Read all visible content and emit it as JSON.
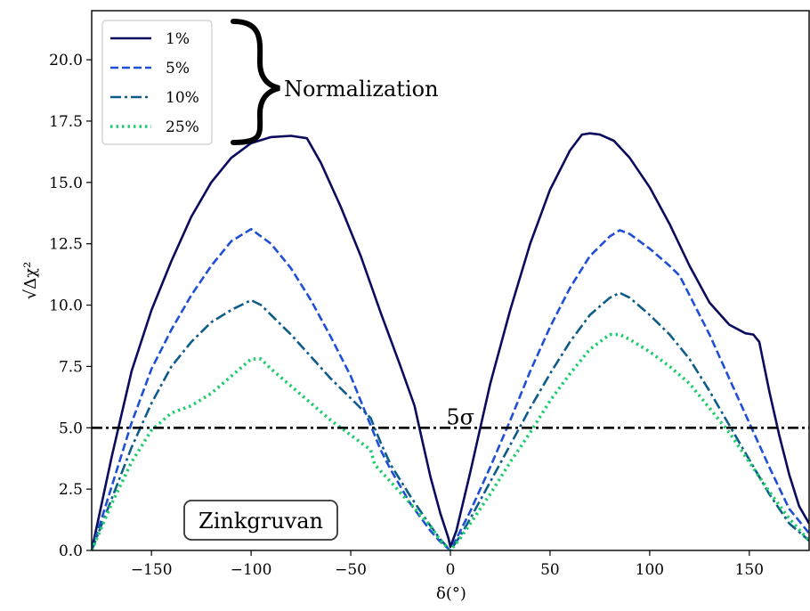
{
  "chart_data": {
    "type": "line",
    "title": "",
    "xlabel": "δ(°)",
    "ylabel": "√Δχ²",
    "xlim": [
      -180,
      180
    ],
    "ylim": [
      0,
      22
    ],
    "xticks": [
      -150,
      -100,
      -50,
      0,
      50,
      100,
      150
    ],
    "yticks": [
      0.0,
      2.5,
      5.0,
      7.5,
      10.0,
      12.5,
      15.0,
      17.5,
      20.0
    ],
    "xtick_labels": [
      "−150",
      "−100",
      "−50",
      "0",
      "50",
      "100",
      "150"
    ],
    "ytick_labels": [
      "0.0",
      "2.5",
      "5.0",
      "7.5",
      "10.0",
      "12.5",
      "15.0",
      "17.5",
      "20.0"
    ],
    "grid": false,
    "legend_position": "top-left",
    "series": [
      {
        "name": "1%",
        "color": "#0b0b5e",
        "dash": "solid",
        "x": [
          -180,
          -170,
          -160,
          -150,
          -140,
          -130,
          -120,
          -110,
          -100,
          -90,
          -80,
          -72,
          -65,
          -55,
          -45,
          -35,
          -25,
          -18,
          -15,
          -10,
          -5,
          -1,
          0,
          3,
          10,
          20,
          30,
          40,
          50,
          60,
          66,
          70,
          75,
          82,
          90,
          100,
          110,
          120,
          130,
          140,
          148,
          152,
          155,
          160,
          165,
          170,
          175,
          180
        ],
        "y": [
          0.0,
          3.8,
          7.3,
          9.8,
          11.8,
          13.6,
          15.0,
          16.0,
          16.6,
          16.85,
          16.9,
          16.8,
          15.8,
          14.0,
          12.0,
          9.7,
          7.5,
          5.9,
          4.8,
          3.0,
          1.5,
          0.5,
          0.15,
          0.8,
          3.2,
          6.8,
          9.8,
          12.5,
          14.7,
          16.3,
          16.95,
          17.0,
          16.95,
          16.7,
          16.0,
          14.8,
          13.3,
          11.6,
          10.1,
          9.2,
          8.85,
          8.8,
          8.5,
          6.5,
          4.7,
          3.1,
          1.8,
          1.1
        ]
      },
      {
        "name": "5%",
        "color": "#1f4fd6",
        "dash": "dashed",
        "x": [
          -180,
          -170,
          -160,
          -150,
          -140,
          -130,
          -120,
          -110,
          -100,
          -90,
          -80,
          -70,
          -60,
          -50,
          -40,
          -35,
          -30,
          -20,
          -10,
          -5,
          0,
          5,
          10,
          20,
          30,
          40,
          50,
          60,
          70,
          80,
          85,
          90,
          100,
          110,
          115,
          120,
          130,
          140,
          150,
          160,
          170,
          180
        ],
        "y": [
          0.0,
          2.6,
          5.2,
          7.4,
          9.0,
          10.4,
          11.6,
          12.6,
          13.1,
          12.5,
          11.5,
          10.2,
          8.7,
          7.1,
          5.1,
          4.1,
          3.3,
          1.9,
          0.8,
          0.35,
          0.0,
          0.8,
          1.6,
          3.4,
          5.3,
          7.3,
          9.1,
          10.7,
          12.0,
          12.8,
          13.05,
          12.9,
          12.3,
          11.6,
          11.2,
          10.4,
          8.8,
          7.0,
          5.2,
          3.4,
          1.7,
          0.7
        ]
      },
      {
        "name": "10%",
        "color": "#0e5c8a",
        "dash": "dashdot",
        "x": [
          -180,
          -170,
          -160,
          -150,
          -140,
          -130,
          -120,
          -110,
          -100,
          -95,
          -90,
          -80,
          -70,
          -60,
          -50,
          -40,
          -35,
          -30,
          -20,
          -10,
          -5,
          0,
          5,
          10,
          20,
          30,
          40,
          50,
          60,
          70,
          80,
          85,
          90,
          100,
          110,
          120,
          130,
          140,
          150,
          160,
          170,
          180
        ],
        "y": [
          0.0,
          2.1,
          4.2,
          6.0,
          7.5,
          8.5,
          9.3,
          9.8,
          10.2,
          10.0,
          9.6,
          8.8,
          7.9,
          7.0,
          6.2,
          5.4,
          4.4,
          3.5,
          2.2,
          1.0,
          0.45,
          0.0,
          0.6,
          1.3,
          2.8,
          4.3,
          5.8,
          7.2,
          8.5,
          9.6,
          10.3,
          10.5,
          10.3,
          9.6,
          8.8,
          7.8,
          6.5,
          5.1,
          3.7,
          2.3,
          1.1,
          0.4
        ]
      },
      {
        "name": "25%",
        "color": "#1fcc6e",
        "dash": "dotted",
        "x": [
          -180,
          -170,
          -160,
          -150,
          -140,
          -130,
          -120,
          -110,
          -100,
          -95,
          -90,
          -80,
          -70,
          -60,
          -50,
          -40,
          -38,
          -30,
          -20,
          -10,
          -5,
          0,
          5,
          10,
          20,
          30,
          40,
          50,
          60,
          70,
          80,
          85,
          90,
          100,
          110,
          120,
          130,
          140,
          150,
          160,
          170,
          180
        ],
        "y": [
          0.0,
          1.9,
          3.6,
          4.9,
          5.6,
          5.9,
          6.4,
          7.1,
          7.8,
          7.8,
          7.4,
          6.7,
          6.0,
          5.3,
          4.7,
          4.1,
          3.5,
          2.8,
          1.9,
          1.0,
          0.4,
          0.0,
          0.5,
          1.1,
          2.3,
          3.6,
          4.8,
          6.1,
          7.2,
          8.2,
          8.8,
          8.8,
          8.6,
          8.1,
          7.5,
          6.8,
          5.8,
          4.8,
          3.6,
          2.4,
          1.3,
          0.4
        ]
      }
    ],
    "reference_line": {
      "y": 5.0,
      "color": "#000000",
      "dash": "dashdot",
      "label": "5σ"
    },
    "annotations": [
      {
        "text": "Normalization",
        "x": -85,
        "y": 19.0
      },
      {
        "text": "Zinkgruvan",
        "x": -118,
        "y": 1.2
      }
    ]
  }
}
